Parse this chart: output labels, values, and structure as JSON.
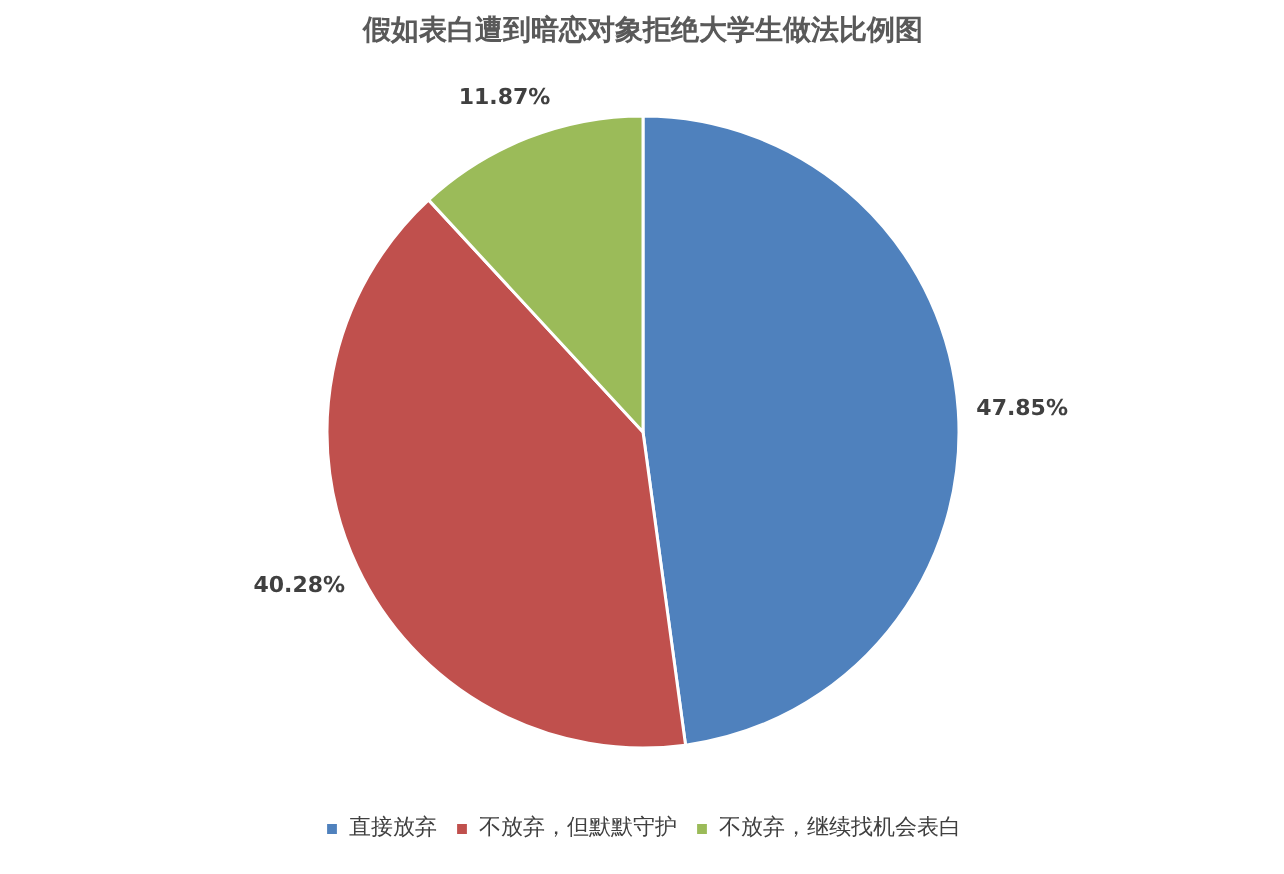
{
  "chart_data": {
    "type": "pie",
    "title": "假如表白遭到暗恋对象拒绝大学生做法比例图",
    "categories": [
      "直接放弃",
      "不放弃，但默默守护",
      "不放弃，继续找机会表白"
    ],
    "values": [
      47.85,
      40.28,
      11.87
    ],
    "colors": [
      "#4f81bd",
      "#c0504d",
      "#9bbb59"
    ],
    "value_labels": [
      "47.85%",
      "40.28%",
      "11.87%"
    ],
    "legend": "bottom"
  }
}
